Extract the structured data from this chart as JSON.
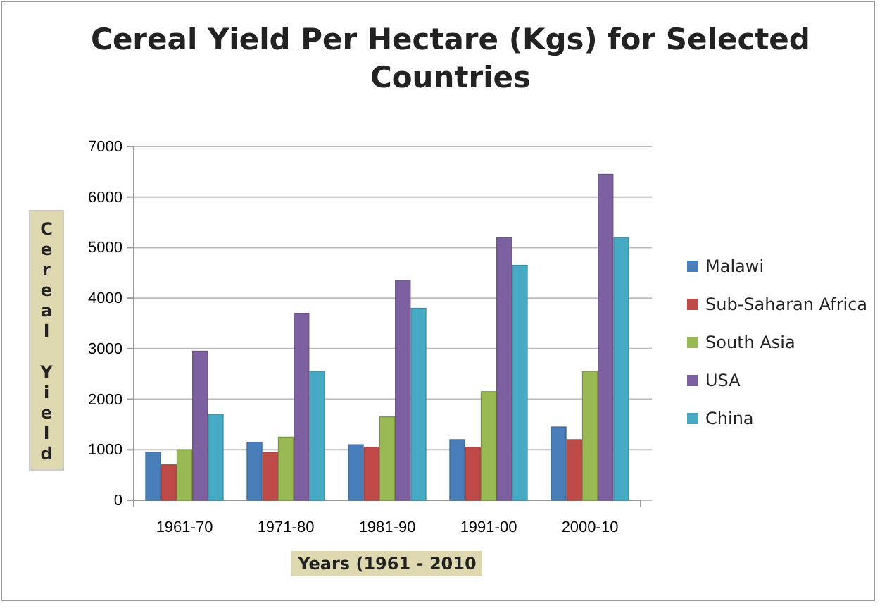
{
  "chart_data": {
    "type": "bar",
    "title": "Cereal Yield Per Hectare (Kgs) for Selected Countries",
    "xlabel": "Years (1961 - 2010",
    "ylabel": "Cereal Yield",
    "categories": [
      "1961-70",
      "1971-80",
      "1981-90",
      "1991-00",
      "2000-10"
    ],
    "series": [
      {
        "name": "Malawi",
        "color": "#4a7ebb",
        "values": [
          950,
          1150,
          1100,
          1200,
          1450
        ]
      },
      {
        "name": "Sub-Saharan Africa",
        "color": "#be4b48",
        "values": [
          700,
          950,
          1050,
          1050,
          1200
        ]
      },
      {
        "name": "South Asia",
        "color": "#98b954",
        "values": [
          1000,
          1250,
          1650,
          2150,
          2550
        ]
      },
      {
        "name": "USA",
        "color": "#7d60a0",
        "values": [
          2950,
          3700,
          4350,
          5200,
          6450
        ]
      },
      {
        "name": "China",
        "color": "#46aac5",
        "values": [
          1700,
          2550,
          3800,
          4650,
          5200
        ]
      }
    ],
    "ylim": [
      0,
      7000
    ],
    "yticks": [
      0,
      1000,
      2000,
      3000,
      4000,
      5000,
      6000,
      7000
    ],
    "grid": "y",
    "legend": "right"
  }
}
